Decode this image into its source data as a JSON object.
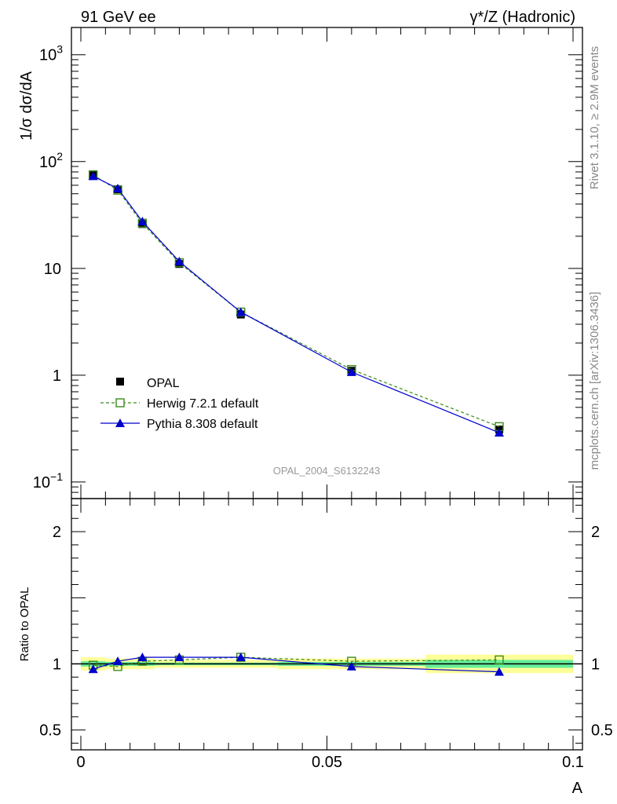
{
  "header": {
    "left": "91 GeV ee",
    "right": "γ*/Z (Hadronic)"
  },
  "side_labels": {
    "rivet": "Rivet 3.1.10, ≥ 2.9M events",
    "mcplots": "mcplots.cern.ch [arXiv:1306.3436]"
  },
  "watermark": "OPAL_2004_S6132243",
  "colors": {
    "data": "#000000",
    "herwig": "#3a8a1a",
    "pythia": "#0000cc",
    "band_outer": "#ffff99",
    "band_inner": "#66ee99"
  },
  "chart_data": [
    {
      "type": "scatter",
      "panel": "main",
      "ylabel": "1/σ dσ/dA",
      "yscale": "log",
      "xlim": [
        0,
        0.1
      ],
      "ylim": [
        0.07,
        1800
      ],
      "yticks": [
        {
          "value": 0.1,
          "label": "10",
          "sup": "−1"
        },
        {
          "value": 1,
          "label": "1",
          "sup": ""
        },
        {
          "value": 10,
          "label": "10",
          "sup": ""
        },
        {
          "value": 100,
          "label": "10",
          "sup": "2"
        },
        {
          "value": 1000,
          "label": "10",
          "sup": "3"
        }
      ],
      "legend": [
        "OPAL",
        "Herwig 7.2.1 default",
        "Pythia 8.308 default"
      ],
      "legend_position": "bottom-left",
      "series": [
        {
          "name": "OPAL",
          "style": "data",
          "x": [
            0.0025,
            0.0075,
            0.0125,
            0.02,
            0.0325,
            0.055,
            0.085
          ],
          "y": [
            76,
            55,
            26,
            11,
            3.7,
            1.1,
            0.31
          ]
        },
        {
          "name": "Herwig 7.2.1 default",
          "style": "herwig",
          "x": [
            0.0025,
            0.0075,
            0.0125,
            0.02,
            0.0325,
            0.055,
            0.085
          ],
          "y": [
            75,
            54,
            26.5,
            11.3,
            3.9,
            1.13,
            0.33
          ]
        },
        {
          "name": "Pythia 8.308 default",
          "style": "pythia",
          "x": [
            0.0025,
            0.0075,
            0.0125,
            0.02,
            0.0325,
            0.055,
            0.085
          ],
          "y": [
            73,
            56,
            27.5,
            11.6,
            3.9,
            1.07,
            0.29
          ]
        }
      ]
    },
    {
      "type": "line",
      "panel": "ratio",
      "ylabel": "Ratio to OPAL",
      "xlabel": "A",
      "xlim": [
        0,
        0.1
      ],
      "ylim": [
        0.35,
        2.25
      ],
      "xticks": [
        {
          "value": 0,
          "label": "0"
        },
        {
          "value": 0.05,
          "label": "0.05"
        },
        {
          "value": 0.1,
          "label": "0.1"
        }
      ],
      "yticks": [
        {
          "value": 0.5,
          "label": "0.5"
        },
        {
          "value": 1,
          "label": "1"
        },
        {
          "value": 2,
          "label": "2"
        }
      ],
      "bands": [
        {
          "x0": 0,
          "x1": 0.005,
          "outer": [
            0.95,
            1.05
          ],
          "inner": [
            0.98,
            1.02
          ]
        },
        {
          "x0": 0.005,
          "x1": 0.01,
          "outer": [
            0.96,
            1.04
          ],
          "inner": [
            0.985,
            1.015
          ]
        },
        {
          "x0": 0.01,
          "x1": 0.015,
          "outer": [
            0.96,
            1.04
          ],
          "inner": [
            0.985,
            1.015
          ]
        },
        {
          "x0": 0.015,
          "x1": 0.025,
          "outer": [
            0.97,
            1.03
          ],
          "inner": [
            0.99,
            1.01
          ]
        },
        {
          "x0": 0.025,
          "x1": 0.04,
          "outer": [
            0.97,
            1.03
          ],
          "inner": [
            0.99,
            1.01
          ]
        },
        {
          "x0": 0.04,
          "x1": 0.07,
          "outer": [
            0.96,
            1.04
          ],
          "inner": [
            0.985,
            1.015
          ]
        },
        {
          "x0": 0.07,
          "x1": 0.1,
          "outer": [
            0.93,
            1.07
          ],
          "inner": [
            0.97,
            1.03
          ]
        }
      ],
      "series": [
        {
          "name": "Herwig 7.2.1 default",
          "style": "herwig",
          "x": [
            0.0025,
            0.0075,
            0.0125,
            0.02,
            0.0325,
            0.055,
            0.085
          ],
          "y": [
            0.99,
            0.98,
            1.02,
            1.03,
            1.05,
            1.02,
            1.03
          ]
        },
        {
          "name": "Pythia 8.308 default",
          "style": "pythia",
          "x": [
            0.0025,
            0.0075,
            0.0125,
            0.02,
            0.0325,
            0.055,
            0.085
          ],
          "y": [
            0.96,
            1.02,
            1.05,
            1.05,
            1.05,
            0.98,
            0.94
          ]
        }
      ]
    }
  ]
}
